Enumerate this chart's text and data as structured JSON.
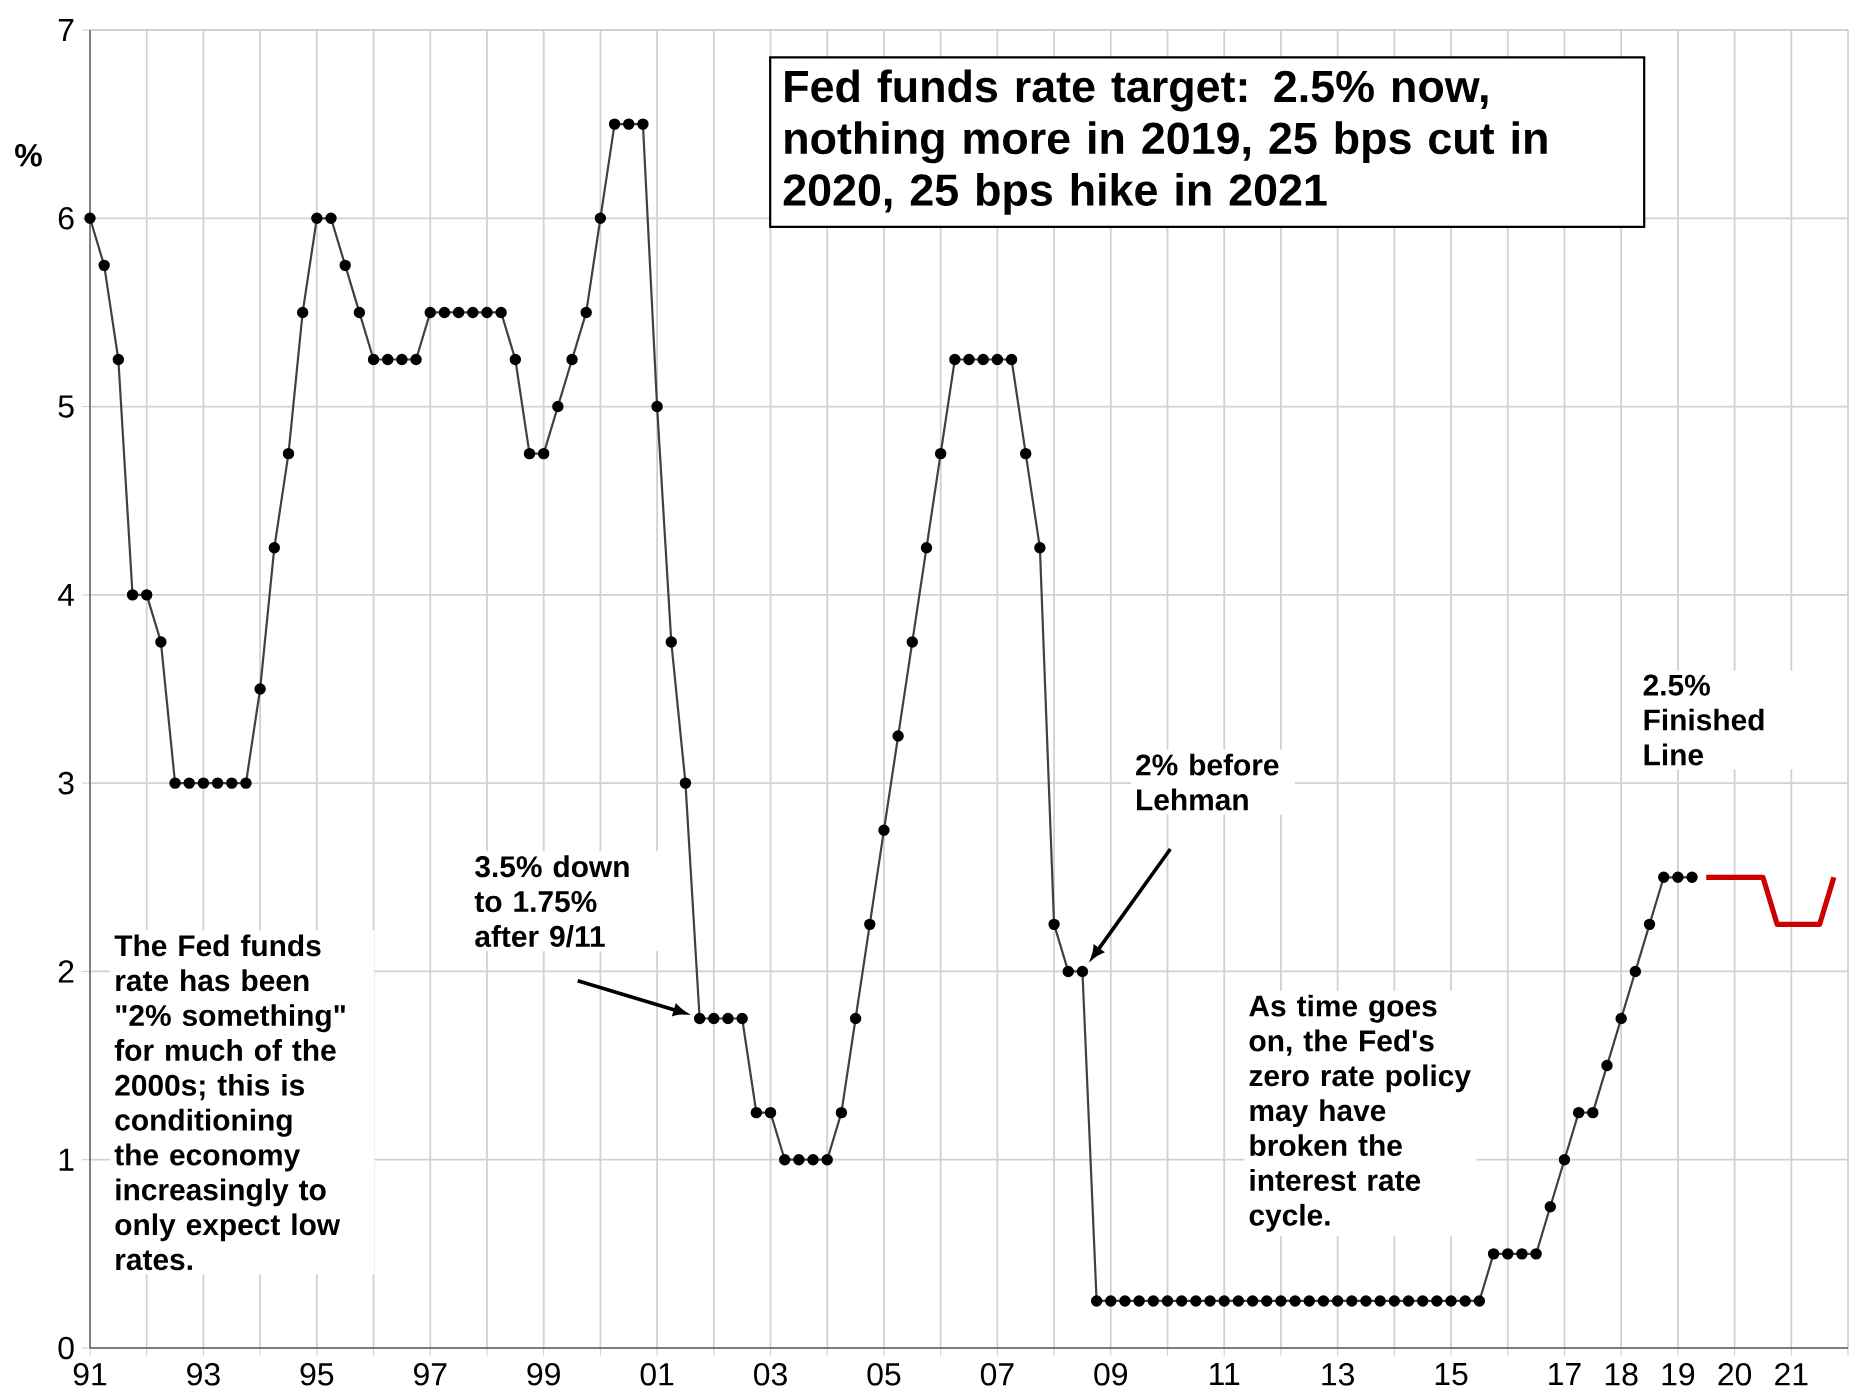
{
  "chart_data": {
    "type": "line",
    "title": "Fed funds rate target: 2.5% now, nothing more in 2019, 25 bps cut in 2020, 25 bps hike in 2021",
    "ylabel": "%",
    "series": [
      {
        "color": "#000000",
        "marker": "circle",
        "x": [
          1991,
          1991.25,
          1991.5,
          1991.75,
          1992,
          1992.25,
          1992.5,
          1992.75,
          1993,
          1993.25,
          1993.5,
          1993.75,
          1994,
          1994.25,
          1994.5,
          1994.75,
          1995,
          1995.25,
          1995.5,
          1995.75,
          1996,
          1996.25,
          1996.5,
          1996.75,
          1997,
          1997.25,
          1997.5,
          1997.75,
          1998,
          1998.25,
          1998.5,
          1998.75,
          1999,
          1999.25,
          1999.5,
          1999.75,
          2000,
          2000.25,
          2000.5,
          2000.75,
          2001,
          2001.25,
          2001.5,
          2001.75,
          2002,
          2002.25,
          2002.5,
          2002.75,
          2003,
          2003.25,
          2003.5,
          2003.75,
          2004,
          2004.25,
          2004.5,
          2004.75,
          2005,
          2005.25,
          2005.5,
          2005.75,
          2006,
          2006.25,
          2006.5,
          2006.75,
          2007,
          2007.25,
          2007.5,
          2007.75,
          2008,
          2008.25,
          2008.5,
          2008.75,
          2009,
          2009.25,
          2009.5,
          2009.75,
          2010,
          2010.25,
          2010.5,
          2010.75,
          2011,
          2011.25,
          2011.5,
          2011.75,
          2012,
          2012.25,
          2012.5,
          2012.75,
          2013,
          2013.25,
          2013.5,
          2013.75,
          2014,
          2014.25,
          2014.5,
          2014.75,
          2015,
          2015.25,
          2015.5,
          2015.75,
          2016,
          2016.25,
          2016.5,
          2016.75,
          2017,
          2017.25,
          2017.5,
          2017.75,
          2018,
          2018.25,
          2018.5,
          2018.75,
          2019,
          2019.25
        ],
        "values": [
          6,
          5.75,
          5.25,
          4,
          4,
          3.75,
          3,
          3,
          3,
          3,
          3,
          3,
          3.5,
          4.25,
          4.75,
          5.5,
          6,
          6,
          5.75,
          5.5,
          5.25,
          5.25,
          5.25,
          5.25,
          5.5,
          5.5,
          5.5,
          5.5,
          5.5,
          5.5,
          5.25,
          4.75,
          4.75,
          5,
          5.25,
          5.5,
          6,
          6.5,
          6.5,
          6.5,
          5,
          3.75,
          3,
          1.75,
          1.75,
          1.75,
          1.75,
          1.25,
          1.25,
          1,
          1,
          1,
          1,
          1.25,
          1.75,
          2.25,
          2.75,
          3.25,
          3.75,
          4.25,
          4.75,
          5.25,
          5.25,
          5.25,
          5.25,
          5.25,
          4.75,
          4.25,
          2.25,
          2,
          2,
          0.25,
          0.25,
          0.25,
          0.25,
          0.25,
          0.25,
          0.25,
          0.25,
          0.25,
          0.25,
          0.25,
          0.25,
          0.25,
          0.25,
          0.25,
          0.25,
          0.25,
          0.25,
          0.25,
          0.25,
          0.25,
          0.25,
          0.25,
          0.25,
          0.25,
          0.25,
          0.25,
          0.25,
          0.5,
          0.5,
          0.5,
          0.5,
          0.75,
          1,
          1.25,
          1.25,
          1.5,
          1.75,
          2,
          2.25,
          2.5,
          2.5,
          2.5
        ]
      },
      {
        "color": "#cc0000",
        "marker": "none",
        "x": [
          2019.5,
          2019.75,
          2020,
          2020.25,
          2020.5,
          2020.75,
          2021,
          2021.25,
          2021.5,
          2021.75
        ],
        "values": [
          2.5,
          2.5,
          2.5,
          2.5,
          2.5,
          2.25,
          2.25,
          2.25,
          2.25,
          2.5
        ]
      }
    ],
    "xlim": [
      1991,
      2022
    ],
    "xticks": [
      {
        "value": 1991,
        "label": "91"
      },
      {
        "value": 1992,
        "label": null
      },
      {
        "value": 1993,
        "label": "93"
      },
      {
        "value": 1994,
        "label": null
      },
      {
        "value": 1995,
        "label": "95"
      },
      {
        "value": 1996,
        "label": null
      },
      {
        "value": 1997,
        "label": "97"
      },
      {
        "value": 1998,
        "label": null
      },
      {
        "value": 1999,
        "label": "99"
      },
      {
        "value": 2000,
        "label": null
      },
      {
        "value": 2001,
        "label": "01"
      },
      {
        "value": 2002,
        "label": null
      },
      {
        "value": 2003,
        "label": "03"
      },
      {
        "value": 2004,
        "label": null
      },
      {
        "value": 2005,
        "label": "05"
      },
      {
        "value": 2006,
        "label": null
      },
      {
        "value": 2007,
        "label": "07"
      },
      {
        "value": 2008,
        "label": null
      },
      {
        "value": 2009,
        "label": "09"
      },
      {
        "value": 2010,
        "label": null
      },
      {
        "value": 2011,
        "label": "11"
      },
      {
        "value": 2012,
        "label": null
      },
      {
        "value": 2013,
        "label": "13"
      },
      {
        "value": 2014,
        "label": null
      },
      {
        "value": 2015,
        "label": "15"
      },
      {
        "value": 2016,
        "label": null
      },
      {
        "value": 2017,
        "label": "17"
      },
      {
        "value": 2018,
        "label": "18"
      },
      {
        "value": 2019,
        "label": "19"
      },
      {
        "value": 2020,
        "label": "20"
      },
      {
        "value": 2021,
        "label": "21"
      },
      {
        "value": 2022,
        "label": null
      }
    ],
    "ylim": [
      0,
      7
    ],
    "yticks": [
      0,
      1,
      2,
      3,
      4,
      5,
      6,
      7
    ],
    "grid": true,
    "annotations": [
      "2.5% Finished Line",
      "3.5% down to 1.75% after 9/11",
      "2% before Lehman",
      "The Fed funds rate has been \"2% something\" for much of the 2000s; this is conditioning the economy increasingly to only expect low rates.",
      "As time goes on, the Fed's zero rate policy may have broken the interest rate cycle."
    ]
  }
}
